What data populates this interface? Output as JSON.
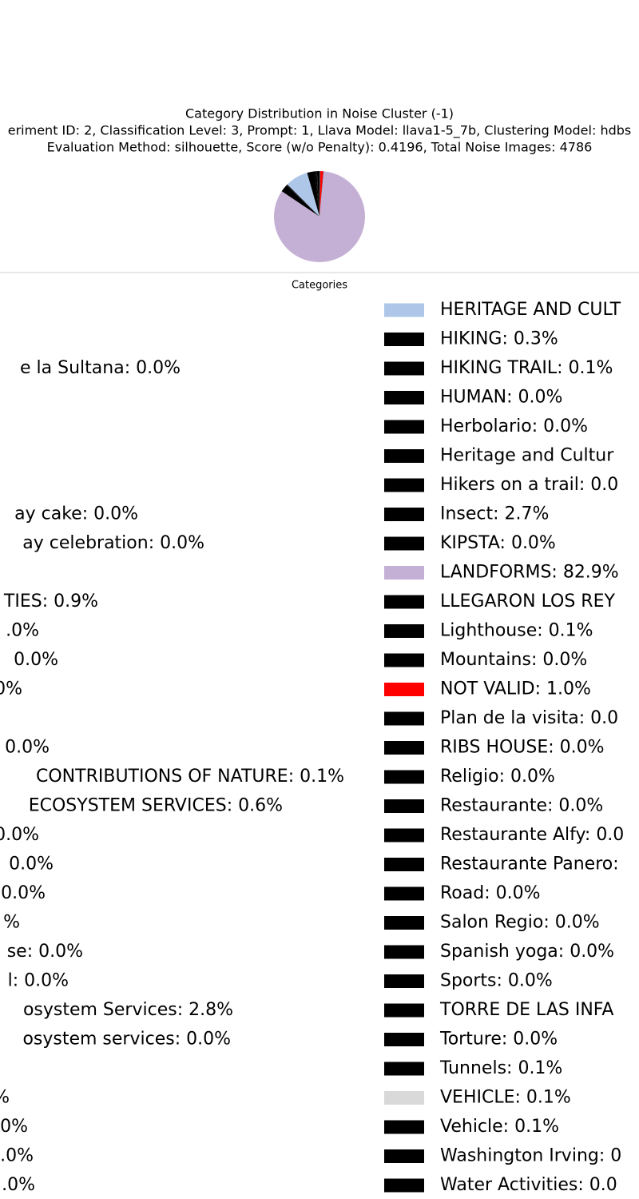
{
  "chart_data": {
    "type": "pie",
    "title": [
      "Category Distribution in Noise Cluster (-1)",
      "eriment ID: 2, Classification Level: 3, Prompt: 1, Llava Model: llava1-5_7b, Clustering Model: hdbs",
      "Evaluation Method: silhouette, Score (w/o Penalty): 0.4196, Total Noise Images: 4786"
    ],
    "legend_title": "Categories",
    "categories": [
      null,
      null,
      "e la Sultana: 0.0%",
      null,
      null,
      null,
      null,
      "ay cake: 0.0%",
      "ay celebration: 0.0%",
      null,
      "TIES: 0.9%",
      ".0%",
      "0.0%",
      "0%",
      null,
      "0.0%",
      "CONTRIBUTIONS OF NATURE: 0.1%",
      "ECOSYSTEM SERVICES: 0.6%",
      "0.0%",
      "0.0%",
      "0.0%",
      "%",
      "se: 0.0%",
      "l: 0.0%",
      "osystem Services: 2.8%",
      "osystem services: 0.0%",
      null,
      "%",
      "0%",
      "0.0%",
      ".0%",
      "HERITAGE AND CULT",
      "HIKING: 0.3%",
      "HIKING TRAIL: 0.1%",
      "HUMAN: 0.0%",
      "Herbolario: 0.0%",
      "Heritage and Cultur",
      "Hikers on a trail: 0.0",
      "Insect: 2.7%",
      "KIPSTA: 0.0%",
      "LANDFORMS: 82.9%",
      "LLEGARON LOS REY",
      "Lighthouse: 0.1%",
      "Mountains: 0.0%",
      "NOT VALID: 1.0%",
      "Plan de la visita: 0.0",
      "RIBS HOUSE: 0.0%",
      "Religio: 0.0%",
      "Restaurante: 0.0%",
      "Restaurante Alfy: 0.0",
      "Restaurante Panero:",
      "Road: 0.0%",
      "Salon Regio: 0.0%",
      "Spanish yoga: 0.0%",
      "Sports: 0.0%",
      "TORRE DE LAS INFA",
      "Torture: 0.0%",
      "Tunnels: 0.1%",
      "VEHICLE: 0.1%",
      "Vehicle: 0.1%",
      "Washington Irving: 0",
      "Water Activities: 0.0"
    ],
    "values": [
      0.0,
      0.0,
      0.0,
      0.0,
      0.0,
      0.0,
      0.0,
      0.0,
      0.0,
      0.0,
      0.9,
      0.0,
      0.0,
      0.0,
      0.0,
      0.0,
      0.1,
      0.6,
      0.0,
      0.0,
      0.0,
      0.0,
      0.0,
      0.0,
      2.8,
      0.0,
      0.0,
      0.0,
      0.0,
      0.0,
      0.0,
      8.1,
      0.3,
      0.1,
      0.0,
      0.0,
      0.0,
      0.0,
      2.7,
      0.0,
      82.9,
      0.0,
      0.1,
      0.0,
      1.0,
      0.0,
      0.0,
      0.0,
      0.0,
      0.0,
      0.0,
      0.0,
      0.0,
      0.0,
      0.0,
      0.0,
      0.0,
      0.1,
      0.1,
      0.1,
      0.0,
      0.0
    ],
    "colors": [
      "#000000",
      "#000000",
      "#000000",
      "#000000",
      "#000000",
      "#000000",
      "#000000",
      "#000000",
      "#000000",
      "#000000",
      "#000000",
      "#000000",
      "#000000",
      "#000000",
      "#000000",
      "#000000",
      "#000000",
      "#000000",
      "#000000",
      "#000000",
      "#000000",
      "#000000",
      "#000000",
      "#000000",
      "#000000",
      "#000000",
      "#000000",
      "#000000",
      "#000000",
      "#000000",
      "#000000",
      "#aec7e8",
      "#000000",
      "#000000",
      "#000000",
      "#000000",
      "#000000",
      "#000000",
      "#000000",
      "#000000",
      "#c5b0d5",
      "#000000",
      "#000000",
      "#000000",
      "#ff0000",
      "#000000",
      "#000000",
      "#000000",
      "#000000",
      "#000000",
      "#000000",
      "#000000",
      "#000000",
      "#000000",
      "#000000",
      "#000000",
      "#000000",
      "#000000",
      "#d9d9d9",
      "#000000",
      "#000000",
      "#000000"
    ]
  }
}
